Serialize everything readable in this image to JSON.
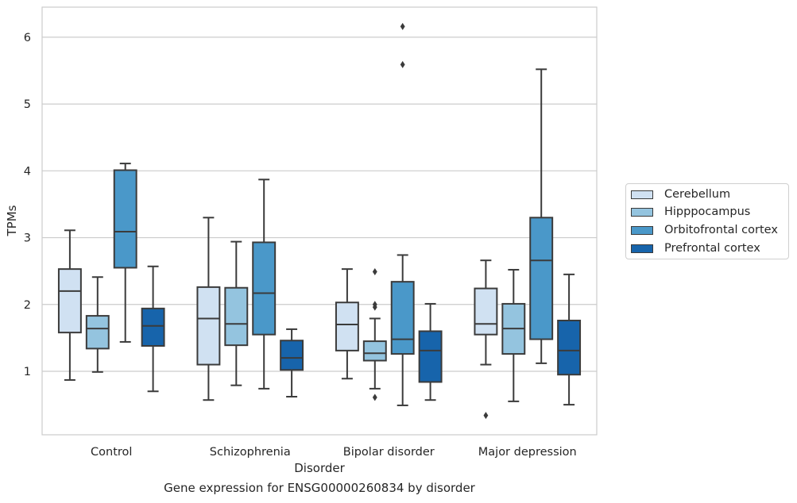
{
  "caption": "Gene expression for ENSG00000260834 by disorder",
  "legend_items": [
    {
      "label": "Cerebellum",
      "color": "#d0e1f2"
    },
    {
      "label": "Hipppocampus",
      "color": "#94c4df"
    },
    {
      "label": "Orbitofrontal cortex",
      "color": "#4a98c9"
    },
    {
      "label": "Prefrontal cortex",
      "color": "#1764ab"
    }
  ],
  "chart_data": {
    "type": "box",
    "xlabel": "Disorder",
    "ylabel": "TPMs",
    "ylim": [
      0.05,
      6.45
    ],
    "yticks": [
      1,
      2,
      3,
      4,
      5,
      6
    ],
    "grid": true,
    "legend_position": "right",
    "categories": [
      "Control",
      "Schizophrenia",
      "Bipolar disorder",
      "Major depression"
    ],
    "series": [
      {
        "name": "Cerebellum",
        "color": "#d0e1f2",
        "boxes": [
          {
            "whislo": 0.87,
            "q1": 1.58,
            "med": 2.2,
            "q3": 2.53,
            "whishi": 3.11,
            "fliers": []
          },
          {
            "whislo": 0.57,
            "q1": 1.1,
            "med": 1.79,
            "q3": 2.26,
            "whishi": 3.3,
            "fliers": []
          },
          {
            "whislo": 0.89,
            "q1": 1.31,
            "med": 1.7,
            "q3": 2.03,
            "whishi": 2.53,
            "fliers": []
          },
          {
            "whislo": 1.1,
            "q1": 1.55,
            "med": 1.71,
            "q3": 2.24,
            "whishi": 2.66,
            "fliers": [
              0.34
            ]
          }
        ]
      },
      {
        "name": "Hipppocampus",
        "color": "#94c4df",
        "boxes": [
          {
            "whislo": 0.99,
            "q1": 1.34,
            "med": 1.64,
            "q3": 1.83,
            "whishi": 2.41,
            "fliers": []
          },
          {
            "whislo": 0.79,
            "q1": 1.39,
            "med": 1.71,
            "q3": 2.25,
            "whishi": 2.94,
            "fliers": []
          },
          {
            "whislo": 0.74,
            "q1": 1.16,
            "med": 1.27,
            "q3": 1.45,
            "whishi": 1.79,
            "fliers": [
              0.61,
              1.96,
              2.0,
              2.49
            ]
          },
          {
            "whislo": 0.55,
            "q1": 1.26,
            "med": 1.64,
            "q3": 2.01,
            "whishi": 2.52,
            "fliers": []
          }
        ]
      },
      {
        "name": "Orbitofrontal cortex",
        "color": "#4a98c9",
        "boxes": [
          {
            "whislo": 1.44,
            "q1": 2.55,
            "med": 3.09,
            "q3": 4.01,
            "whishi": 4.11,
            "fliers": []
          },
          {
            "whislo": 0.74,
            "q1": 1.55,
            "med": 2.17,
            "q3": 2.93,
            "whishi": 3.87,
            "fliers": []
          },
          {
            "whislo": 0.49,
            "q1": 1.26,
            "med": 1.48,
            "q3": 2.34,
            "whishi": 2.74,
            "fliers": [
              5.59,
              6.16
            ]
          },
          {
            "whislo": 1.12,
            "q1": 1.48,
            "med": 2.66,
            "q3": 3.3,
            "whishi": 5.52,
            "fliers": []
          }
        ]
      },
      {
        "name": "Prefrontal cortex",
        "color": "#1764ab",
        "boxes": [
          {
            "whislo": 0.7,
            "q1": 1.38,
            "med": 1.68,
            "q3": 1.94,
            "whishi": 2.57,
            "fliers": []
          },
          {
            "whislo": 0.62,
            "q1": 1.02,
            "med": 1.2,
            "q3": 1.46,
            "whishi": 1.63,
            "fliers": []
          },
          {
            "whislo": 0.57,
            "q1": 0.84,
            "med": 1.31,
            "q3": 1.6,
            "whishi": 2.01,
            "fliers": []
          },
          {
            "whislo": 0.5,
            "q1": 0.95,
            "med": 1.31,
            "q3": 1.76,
            "whishi": 2.45,
            "fliers": []
          }
        ]
      }
    ]
  }
}
